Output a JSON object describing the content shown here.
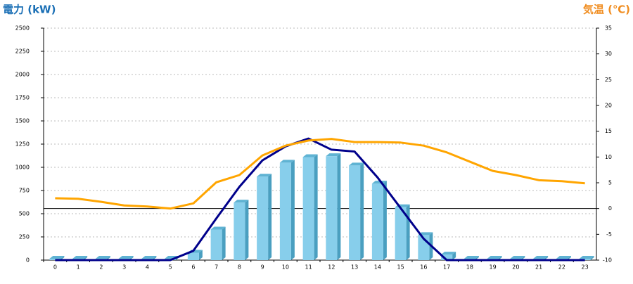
{
  "chart_data": {
    "type": "bar-line",
    "y_label": "電力 (kW)",
    "y2_label": "気温 (℃)",
    "categories": [
      "0",
      "1",
      "2",
      "3",
      "4",
      "5",
      "6",
      "7",
      "8",
      "9",
      "10",
      "11",
      "12",
      "13",
      "14",
      "15",
      "16",
      "17",
      "18",
      "19",
      "20",
      "21",
      "22",
      "23"
    ],
    "series": [
      {
        "type": "bar",
        "axis": "y",
        "color": "#87ceeb",
        "values": [
          15,
          15,
          15,
          15,
          15,
          15,
          80,
          330,
          620,
          900,
          1050,
          1110,
          1120,
          1020,
          825,
          570,
          270,
          60,
          15,
          15,
          15,
          15,
          15,
          15
        ]
      },
      {
        "type": "line",
        "axis": "y",
        "color": "#00008b",
        "values": [
          0,
          0,
          0,
          0,
          0,
          0,
          100,
          450,
          790,
          1075,
          1225,
          1310,
          1190,
          1170,
          890,
          560,
          230,
          0,
          0,
          0,
          0,
          0,
          0,
          0
        ]
      },
      {
        "type": "line",
        "axis": "y2",
        "color": "#ffa500",
        "values": [
          2.0,
          1.9,
          1.3,
          0.6,
          0.4,
          0.0,
          1.0,
          5.1,
          6.5,
          10.3,
          12.2,
          13.2,
          13.5,
          12.9,
          12.9,
          12.8,
          12.2,
          10.9,
          9.1,
          7.3,
          6.5,
          5.5,
          5.3,
          4.9
        ]
      }
    ],
    "ylim": [
      0,
      2500
    ],
    "yticks": [
      0,
      250,
      500,
      750,
      1000,
      1250,
      1500,
      1750,
      2000,
      2250,
      2500
    ],
    "y2lim": [
      -10,
      35
    ],
    "y2ticks": [
      -10,
      -5,
      0,
      5,
      10,
      15,
      20,
      25,
      30,
      35
    ],
    "grid": true
  }
}
